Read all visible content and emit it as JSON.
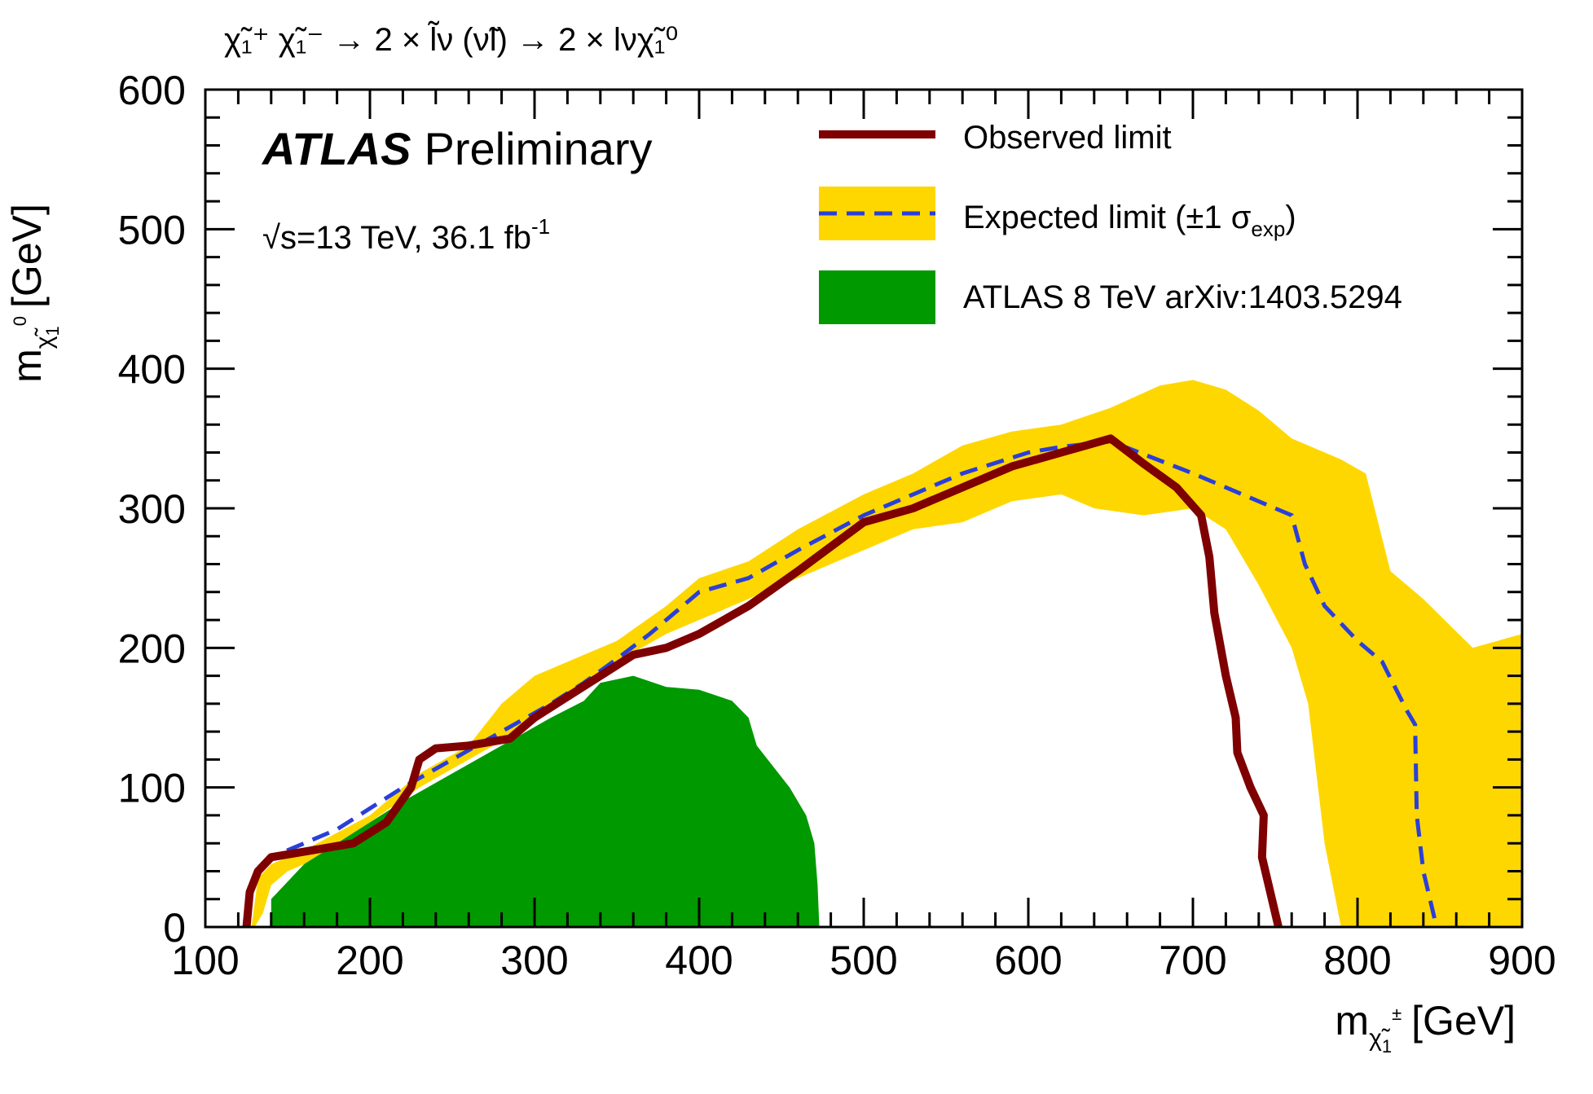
{
  "chart_data": {
    "type": "area",
    "title": "χ̃₁⁺ χ̃₁⁻ → 2 × l̃ν (ν̃l) → 2 × lνχ̃₁⁰",
    "title_parts": {
      "chi": "χ",
      "tilde": "~",
      "sub1": "1",
      "plus": "+",
      "minus": "-",
      "arrow1": "→ 2 ×",
      "lnu": "lν",
      "paren_open": "(",
      "nul": "νl",
      "paren_close": ")",
      "arrow2": "→ 2 × lν",
      "zero": "0"
    },
    "xlabel": "m_χ̃₁± [GeV]",
    "ylabel": "m_χ̃₁⁰ [GeV]",
    "xlabel_parts": {
      "m": "m",
      "sup": "±",
      "unit": "[GeV]"
    },
    "ylabel_parts": {
      "m": "m",
      "sup": "0",
      "unit": "[GeV]"
    },
    "xlim": [
      100,
      900
    ],
    "ylim": [
      0,
      600
    ],
    "xticks": [
      100,
      200,
      300,
      400,
      500,
      600,
      700,
      800,
      900
    ],
    "yticks": [
      0,
      100,
      200,
      300,
      400,
      500,
      600
    ],
    "xtick_labels": [
      "100",
      "200",
      "300",
      "400",
      "500",
      "600",
      "700",
      "800",
      "900"
    ],
    "ytick_labels": [
      "0",
      "100",
      "200",
      "300",
      "400",
      "500",
      "600"
    ],
    "brand": {
      "bold": "ATLAS",
      "rest": "Preliminary"
    },
    "energy": {
      "sqrt": "√",
      "text": "s=13 TeV, 36.1 fb",
      "sup": "-1"
    },
    "legend": {
      "observed": "Observed limit",
      "expected": "Expected limit (±1 σ",
      "expected_sub": "exp",
      "expected_close": ")",
      "atlas8": "ATLAS 8 TeV arXiv:1403.5294"
    },
    "colors": {
      "observed": "#7f0000",
      "expected": "#2a3fd9",
      "band": "#ffd700",
      "atlas8": "#009900"
    },
    "series": [
      {
        "name": "ATLAS 8 TeV arXiv:1403.5294",
        "kind": "fill",
        "points": [
          [
            140,
            0
          ],
          [
            140,
            20
          ],
          [
            160,
            45
          ],
          [
            180,
            60
          ],
          [
            200,
            75
          ],
          [
            220,
            90
          ],
          [
            250,
            110
          ],
          [
            280,
            130
          ],
          [
            310,
            150
          ],
          [
            330,
            162
          ],
          [
            340,
            175
          ],
          [
            360,
            180
          ],
          [
            380,
            172
          ],
          [
            400,
            170
          ],
          [
            420,
            162
          ],
          [
            430,
            150
          ],
          [
            435,
            130
          ],
          [
            445,
            115
          ],
          [
            455,
            100
          ],
          [
            465,
            80
          ],
          [
            470,
            60
          ],
          [
            472,
            30
          ],
          [
            473,
            0
          ]
        ]
      },
      {
        "name": "Expected limit ±1σ band",
        "kind": "band",
        "points": [
          [
            128,
            0
          ],
          [
            132,
            35
          ],
          [
            140,
            45
          ],
          [
            160,
            55
          ],
          [
            200,
            80
          ],
          [
            230,
            110
          ],
          [
            260,
            130
          ],
          [
            280,
            160
          ],
          [
            300,
            180
          ],
          [
            330,
            195
          ],
          [
            350,
            205
          ],
          [
            380,
            230
          ],
          [
            400,
            250
          ],
          [
            430,
            262
          ],
          [
            460,
            285
          ],
          [
            500,
            310
          ],
          [
            530,
            325
          ],
          [
            560,
            345
          ],
          [
            590,
            355
          ],
          [
            620,
            360
          ],
          [
            650,
            372
          ],
          [
            680,
            388
          ],
          [
            700,
            392
          ],
          [
            720,
            385
          ],
          [
            740,
            370
          ],
          [
            760,
            350
          ],
          [
            790,
            335
          ],
          [
            805,
            325
          ],
          [
            820,
            255
          ],
          [
            840,
            235
          ],
          [
            870,
            200
          ],
          [
            900,
            210
          ],
          [
            900,
            0
          ],
          [
            790,
            0
          ],
          [
            780,
            60
          ],
          [
            770,
            160
          ],
          [
            760,
            200
          ],
          [
            740,
            245
          ],
          [
            720,
            285
          ],
          [
            700,
            300
          ],
          [
            670,
            295
          ],
          [
            640,
            300
          ],
          [
            620,
            310
          ],
          [
            590,
            305
          ],
          [
            560,
            290
          ],
          [
            530,
            285
          ],
          [
            500,
            270
          ],
          [
            470,
            255
          ],
          [
            440,
            240
          ],
          [
            410,
            225
          ],
          [
            380,
            210
          ],
          [
            350,
            190
          ],
          [
            320,
            165
          ],
          [
            290,
            140
          ],
          [
            260,
            120
          ],
          [
            230,
            100
          ],
          [
            200,
            75
          ],
          [
            170,
            50
          ],
          [
            150,
            40
          ],
          [
            140,
            30
          ],
          [
            135,
            10
          ],
          [
            130,
            0
          ]
        ]
      },
      {
        "name": "Expected limit",
        "kind": "dashed",
        "points": [
          [
            135,
            45
          ],
          [
            150,
            55
          ],
          [
            180,
            70
          ],
          [
            200,
            85
          ],
          [
            220,
            100
          ],
          [
            250,
            120
          ],
          [
            280,
            140
          ],
          [
            310,
            160
          ],
          [
            330,
            175
          ],
          [
            350,
            192
          ],
          [
            370,
            210
          ],
          [
            400,
            240
          ],
          [
            430,
            250
          ],
          [
            460,
            270
          ],
          [
            500,
            295
          ],
          [
            530,
            310
          ],
          [
            560,
            325
          ],
          [
            600,
            340
          ],
          [
            620,
            344
          ],
          [
            650,
            348
          ],
          [
            700,
            325
          ],
          [
            760,
            295
          ],
          [
            768,
            260
          ],
          [
            780,
            230
          ],
          [
            800,
            205
          ],
          [
            815,
            190
          ],
          [
            830,
            155
          ],
          [
            835,
            145
          ],
          [
            836,
            80
          ],
          [
            840,
            40
          ],
          [
            848,
            0
          ]
        ]
      },
      {
        "name": "Observed limit",
        "kind": "solid",
        "points": [
          [
            125,
            0
          ],
          [
            127,
            25
          ],
          [
            132,
            40
          ],
          [
            140,
            50
          ],
          [
            165,
            55
          ],
          [
            190,
            60
          ],
          [
            210,
            75
          ],
          [
            225,
            100
          ],
          [
            230,
            120
          ],
          [
            240,
            128
          ],
          [
            260,
            130
          ],
          [
            285,
            135
          ],
          [
            300,
            150
          ],
          [
            320,
            165
          ],
          [
            340,
            180
          ],
          [
            360,
            195
          ],
          [
            380,
            200
          ],
          [
            400,
            210
          ],
          [
            430,
            230
          ],
          [
            460,
            255
          ],
          [
            500,
            290
          ],
          [
            530,
            300
          ],
          [
            560,
            315
          ],
          [
            590,
            330
          ],
          [
            620,
            340
          ],
          [
            650,
            350
          ],
          [
            670,
            332
          ],
          [
            690,
            315
          ],
          [
            705,
            295
          ],
          [
            710,
            265
          ],
          [
            713,
            225
          ],
          [
            720,
            180
          ],
          [
            726,
            150
          ],
          [
            727,
            125
          ],
          [
            735,
            100
          ],
          [
            743,
            80
          ],
          [
            742,
            50
          ],
          [
            746,
            30
          ],
          [
            752,
            0
          ]
        ]
      }
    ]
  }
}
